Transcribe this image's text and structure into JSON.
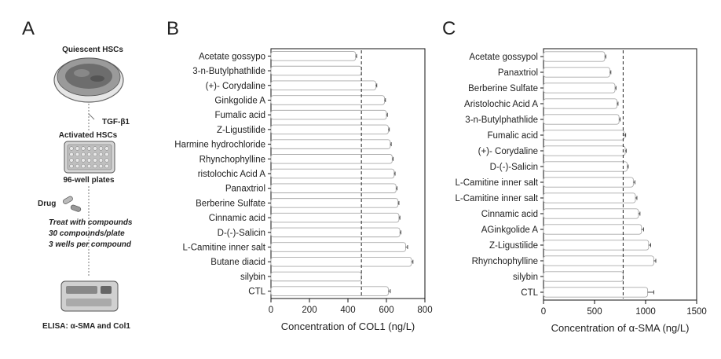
{
  "panel_a": {
    "letter": "A",
    "quiescent_label": "Quiescent HSCs",
    "tgf_label": "TGF-β1",
    "activated_label": "Activated HSCs",
    "plate_label": "96-well plates",
    "drug_label": "Drug",
    "treat_lines": [
      "Treat with compounds",
      "30 compounds/plate",
      "3 wells per compound"
    ],
    "elisa_label": "ELISA: α-SMA and Col1"
  },
  "chart_data": [
    {
      "type": "bar",
      "orientation": "horizontal",
      "panel_label": "B",
      "xlabel": "Concentration of COL1 (ng/L)",
      "xlim": [
        0,
        800
      ],
      "xticks": [
        0,
        200,
        400,
        600,
        800
      ],
      "reference_line": 470,
      "categories": [
        "Acetate gossypo",
        "3-n-Butylphathlide",
        "(+)- Corydaline",
        "Ginkgolide A",
        "Fumalic acid",
        "Z-Ligustilide",
        "Harmine hydrochloride",
        "Rhynchophylline",
        "ristolochic Acid A",
        "Panaxtriol",
        "Berberine Sulfate",
        "Cinnamic acid",
        "D-(-)-Salicin",
        "L-Camitine inner salt",
        "Butane diacid",
        "silybin",
        "CTL"
      ],
      "values": [
        440,
        470,
        545,
        590,
        600,
        610,
        620,
        630,
        640,
        650,
        660,
        665,
        670,
        700,
        730,
        470,
        610
      ],
      "errors": [
        5,
        0,
        5,
        5,
        5,
        5,
        5,
        5,
        5,
        5,
        5,
        5,
        5,
        10,
        8,
        0,
        10
      ]
    },
    {
      "type": "bar",
      "orientation": "horizontal",
      "panel_label": "C",
      "xlabel": "Concentration of α-SMA (ng/L)",
      "xlim": [
        0,
        1500
      ],
      "xticks": [
        0,
        500,
        1000,
        1500
      ],
      "reference_line": 780,
      "categories": [
        "Acetate gossypol",
        "Panaxtriol",
        "Berberine Sulfate",
        "Aristolochic Acid A",
        "3-n-Butylphathlide",
        "Fumalic acid",
        "(+)- Corydaline",
        "D-(-)-Salicin",
        "L-Camitine inner salt",
        "L-Camitine inner salt",
        "Cinnamic acid",
        "AGinkgolide A",
        "Z-Ligustilide",
        "Rhynchophylline",
        "silybin",
        "CTL"
      ],
      "values": [
        600,
        650,
        700,
        720,
        740,
        790,
        800,
        820,
        880,
        900,
        930,
        960,
        1030,
        1080,
        780,
        1020
      ],
      "errors": [
        10,
        10,
        10,
        10,
        10,
        15,
        10,
        10,
        15,
        15,
        15,
        20,
        20,
        20,
        0,
        60
      ]
    }
  ]
}
